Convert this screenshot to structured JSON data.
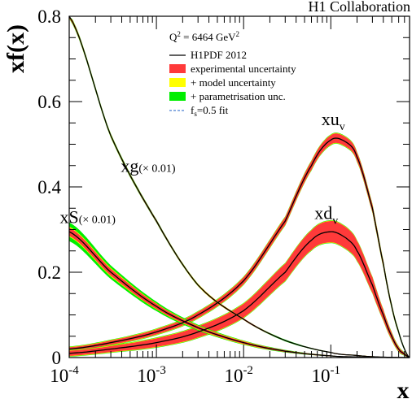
{
  "chart_data": {
    "type": "line",
    "collaboration": "H1 Collaboration",
    "ylabel": "xf(x)",
    "xlabel": "x",
    "xscale": "log",
    "xlim": [
      0.0001,
      0.8
    ],
    "ylim": [
      0,
      0.8
    ],
    "x_ticks": [
      {
        "value": 0.0001,
        "base": "10",
        "exp": "-4"
      },
      {
        "value": 0.001,
        "base": "10",
        "exp": "-3"
      },
      {
        "value": 0.01,
        "base": "10",
        "exp": "-2"
      },
      {
        "value": 0.1,
        "base": "10",
        "exp": "-1"
      }
    ],
    "y_ticks": [
      {
        "value": 0,
        "label": "0"
      },
      {
        "value": 0.2,
        "label": "0.2"
      },
      {
        "value": 0.4,
        "label": "0.4"
      },
      {
        "value": 0.6,
        "label": "0.6"
      },
      {
        "value": 0.8,
        "label": "0.8"
      }
    ],
    "legend": {
      "title_prefix": "Q",
      "title_sup": "2",
      "title_suffix": " = 6464 GeV",
      "title_unit_sup": "2",
      "entries": [
        {
          "label": "H1PDF 2012",
          "style": "line",
          "color": "#000000"
        },
        {
          "label": "experimental uncertainty",
          "style": "box",
          "color": "#ff3a3a"
        },
        {
          "label": "+ model uncertainty",
          "style": "box",
          "color": "#ffff00"
        },
        {
          "label": "+ parametrisation unc.",
          "style": "box",
          "color": "#00ee00"
        },
        {
          "label_main": "f",
          "label_sub": "s",
          "label_rest": "=0.5 fit",
          "style": "dashed",
          "color": "#4a7fd0"
        }
      ]
    },
    "series": [
      {
        "label_main": "xu",
        "label_sub": "v",
        "x": [
          0.0001,
          0.0003,
          0.001,
          0.003,
          0.01,
          0.03,
          0.06,
          0.1,
          0.15,
          0.2,
          0.3,
          0.4,
          0.5,
          0.6,
          0.7,
          0.8
        ],
        "y": [
          0.02,
          0.035,
          0.06,
          0.1,
          0.18,
          0.32,
          0.45,
          0.51,
          0.505,
          0.47,
          0.35,
          0.22,
          0.12,
          0.06,
          0.02,
          0.0
        ],
        "band_experimental": [
          0.004,
          0.005,
          0.006,
          0.007,
          0.008,
          0.009,
          0.01,
          0.011,
          0.011,
          0.01,
          0.009,
          0.007,
          0.005,
          0.003,
          0.002,
          0.001
        ],
        "band_model": [
          0.005,
          0.006,
          0.007,
          0.008,
          0.009,
          0.01,
          0.011,
          0.012,
          0.012,
          0.011,
          0.01,
          0.008,
          0.006,
          0.004,
          0.002,
          0.001
        ],
        "band_parametrisation": [
          0.006,
          0.007,
          0.008,
          0.009,
          0.01,
          0.011,
          0.012,
          0.013,
          0.013,
          0.012,
          0.011,
          0.009,
          0.007,
          0.005,
          0.003,
          0.001
        ]
      },
      {
        "label_main": "xd",
        "label_sub": "v",
        "x": [
          0.0001,
          0.0003,
          0.001,
          0.003,
          0.01,
          0.03,
          0.06,
          0.1,
          0.15,
          0.2,
          0.3,
          0.4,
          0.5,
          0.6,
          0.7,
          0.8
        ],
        "y": [
          0.01,
          0.02,
          0.035,
          0.06,
          0.11,
          0.2,
          0.275,
          0.295,
          0.28,
          0.25,
          0.17,
          0.1,
          0.05,
          0.02,
          0.008,
          0.0
        ],
        "band_experimental": [
          0.006,
          0.007,
          0.01,
          0.013,
          0.016,
          0.02,
          0.023,
          0.025,
          0.025,
          0.023,
          0.018,
          0.012,
          0.008,
          0.005,
          0.003,
          0.001
        ],
        "band_model": [
          0.007,
          0.008,
          0.011,
          0.014,
          0.017,
          0.021,
          0.024,
          0.026,
          0.026,
          0.024,
          0.019,
          0.013,
          0.009,
          0.006,
          0.003,
          0.001
        ],
        "band_parametrisation": [
          0.008,
          0.009,
          0.012,
          0.015,
          0.018,
          0.022,
          0.025,
          0.027,
          0.027,
          0.025,
          0.02,
          0.014,
          0.01,
          0.007,
          0.004,
          0.001
        ]
      },
      {
        "label_main": "xg",
        "label_sub": "(× 0.01)",
        "x": [
          0.0001,
          0.0003,
          0.001,
          0.003,
          0.01,
          0.03,
          0.1,
          0.2,
          0.3,
          0.5,
          0.8
        ],
        "y": [
          0.8,
          0.52,
          0.32,
          0.17,
          0.09,
          0.04,
          0.012,
          0.005,
          0.002,
          0.0005,
          0.0
        ],
        "band_experimental": [
          0.004,
          0.003,
          0.003,
          0.002,
          0.002,
          0.001,
          0.001,
          0.001,
          0.001,
          0.0,
          0.0
        ],
        "band_model": [
          0.005,
          0.004,
          0.003,
          0.003,
          0.002,
          0.001,
          0.001,
          0.001,
          0.001,
          0.0,
          0.0
        ],
        "band_parametrisation": [
          0.006,
          0.005,
          0.004,
          0.003,
          0.002,
          0.002,
          0.001,
          0.001,
          0.001,
          0.0,
          0.0
        ]
      },
      {
        "label_main": "xS",
        "label_sub": "(× 0.01)",
        "x": [
          0.0001,
          0.0003,
          0.001,
          0.003,
          0.01,
          0.03,
          0.1,
          0.2,
          0.3,
          0.5,
          0.8
        ],
        "y": [
          0.295,
          0.2,
          0.12,
          0.07,
          0.035,
          0.015,
          0.004,
          0.0015,
          0.0005,
          0.0,
          0.0
        ],
        "band_experimental": [
          0.01,
          0.008,
          0.006,
          0.004,
          0.003,
          0.002,
          0.001,
          0.0,
          0.0,
          0.0,
          0.0
        ],
        "band_model": [
          0.012,
          0.01,
          0.007,
          0.005,
          0.004,
          0.002,
          0.001,
          0.0,
          0.0,
          0.0,
          0.0
        ],
        "band_parametrisation": [
          0.022,
          0.016,
          0.011,
          0.007,
          0.005,
          0.003,
          0.001,
          0.0,
          0.0,
          0.0,
          0.0
        ]
      }
    ]
  }
}
